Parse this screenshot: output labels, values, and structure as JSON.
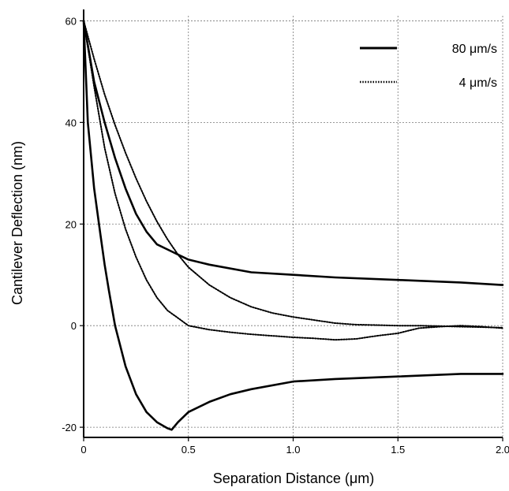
{
  "chart_data": {
    "type": "line",
    "title": "",
    "xlabel": "Separation Distance (μm)",
    "ylabel": "Cantilever Deflection (nm)",
    "xlim": [
      0,
      2.0
    ],
    "ylim": [
      -22,
      61
    ],
    "x_ticks": [
      "0",
      "0.5",
      "1.0",
      "1.5",
      "2.0"
    ],
    "y_ticks": [
      "60",
      "40",
      "20",
      "0",
      "-20"
    ],
    "grid": true,
    "legend_position": "top-right",
    "legend": [
      {
        "label": "80 μm/s",
        "style": "solid"
      },
      {
        "label": "4 μm/s",
        "style": "dotted"
      }
    ],
    "series": [
      {
        "legend": "80 μm/s",
        "style": "solid",
        "x": [
          0,
          0.05,
          0.1,
          0.15,
          0.2,
          0.25,
          0.3,
          0.35,
          0.4,
          0.5,
          0.6,
          0.8,
          1.0,
          1.2,
          1.5,
          1.8,
          2.0
        ],
        "y": [
          60,
          48,
          40,
          33,
          27,
          22,
          18.5,
          16,
          15,
          13,
          12,
          10.5,
          10,
          9.5,
          9,
          8.5,
          8
        ]
      },
      {
        "legend": "80 μm/s",
        "style": "solid",
        "x": [
          0,
          0.02,
          0.05,
          0.08,
          0.1,
          0.12,
          0.15,
          0.2,
          0.25,
          0.3,
          0.35,
          0.4,
          0.42,
          0.45,
          0.5,
          0.6,
          0.7,
          0.8,
          1.0,
          1.2,
          1.5,
          1.8,
          2.0
        ],
        "y": [
          60,
          40,
          27,
          18,
          12,
          7,
          0,
          -8,
          -13.5,
          -17,
          -19,
          -20.2,
          -20.5,
          -19,
          -17,
          -15,
          -13.5,
          -12.5,
          -11,
          -10.5,
          -10,
          -9.5,
          -9.5
        ]
      },
      {
        "legend": "4 μm/s",
        "style": "dotted",
        "x": [
          0,
          0.05,
          0.1,
          0.15,
          0.2,
          0.25,
          0.3,
          0.35,
          0.4,
          0.45,
          0.5,
          0.6,
          0.7,
          0.8,
          0.9,
          1.0,
          1.1,
          1.2,
          1.3,
          1.4,
          1.5,
          1.6,
          1.7,
          1.8,
          1.9,
          2.0
        ],
        "y": [
          60,
          52.5,
          45.5,
          39.5,
          34,
          29,
          24.5,
          20.5,
          17,
          14,
          11.5,
          8,
          5.5,
          3.7,
          2.5,
          1.7,
          1.1,
          0.5,
          0.2,
          0.1,
          0,
          0,
          -0.1,
          -0.2,
          -0.3,
          -0.4
        ]
      },
      {
        "legend": "4 μm/s",
        "style": "dotted",
        "x": [
          0,
          0.05,
          0.1,
          0.15,
          0.2,
          0.25,
          0.3,
          0.35,
          0.4,
          0.45,
          0.5,
          0.6,
          0.7,
          0.8,
          0.9,
          1.0,
          1.1,
          1.2,
          1.3,
          1.4,
          1.5,
          1.55,
          1.6,
          1.7,
          1.8,
          1.9,
          2.0
        ],
        "y": [
          60,
          47,
          35,
          26,
          19,
          13.5,
          9,
          5.5,
          3,
          1.5,
          0,
          -0.8,
          -1.3,
          -1.7,
          -2,
          -2.3,
          -2.5,
          -2.8,
          -2.6,
          -2,
          -1.5,
          -1,
          -0.5,
          -0.2,
          0,
          -0.2,
          -0.5
        ]
      }
    ]
  }
}
